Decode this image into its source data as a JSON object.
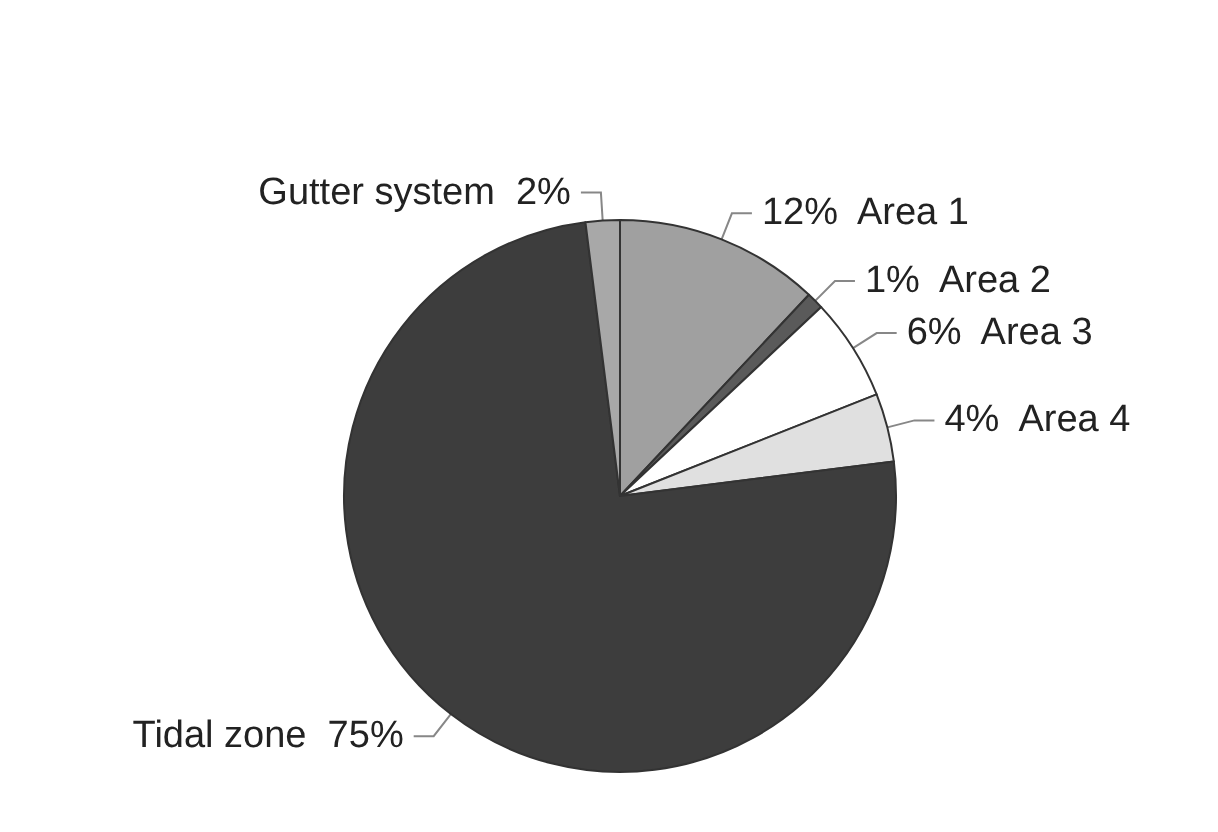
{
  "chart_data": {
    "type": "pie",
    "categories": [
      "Area 1",
      "Area 2",
      "Area 3",
      "Area 4",
      "Tidal zone",
      "Gutter system"
    ],
    "values": [
      12,
      1,
      6,
      4,
      75,
      2
    ],
    "colors": [
      "#a0a0a0",
      "#5a5a5a",
      "#ffffff",
      "#e0e0e0",
      "#3d3d3d",
      "#a8a8a8"
    ],
    "value_labels": [
      "12%",
      "1%",
      "6%",
      "4%",
      "75%",
      "2%"
    ]
  }
}
